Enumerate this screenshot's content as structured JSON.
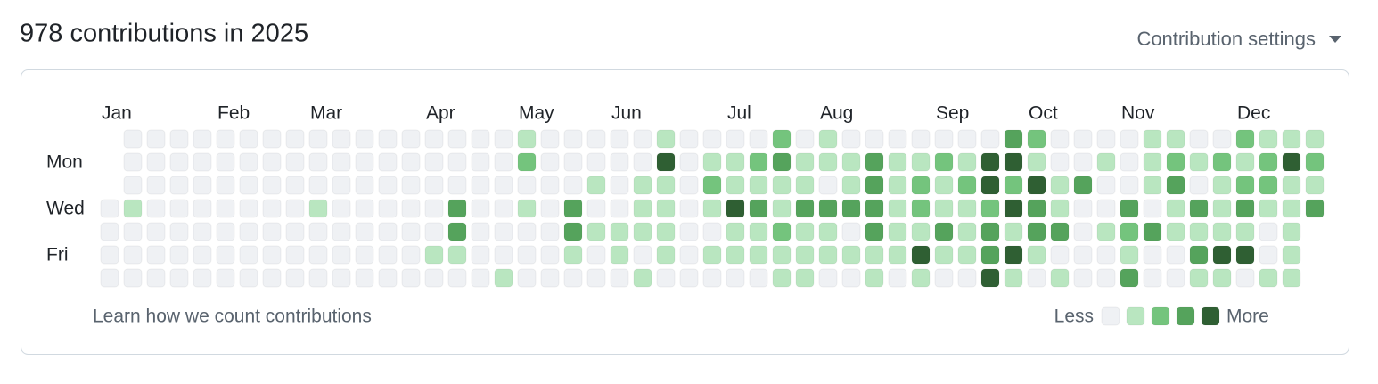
{
  "header": {
    "title": "978 contributions in 2025",
    "settings": "Contribution settings"
  },
  "calendar": {
    "months": [
      "Jan",
      "Feb",
      "Mar",
      "Apr",
      "May",
      "Jun",
      "Jul",
      "Aug",
      "Sep",
      "Oct",
      "Nov",
      "Dec"
    ],
    "day_labels": [
      "Mon",
      "Wed",
      "Fri"
    ],
    "colors": [
      "#eff1f4",
      "#b9e6c0",
      "#74c47d",
      "#55a35c",
      "#2f5f33"
    ],
    "levels": [
      [
        null,
        0,
        0,
        0,
        0,
        0,
        0,
        0,
        0,
        0,
        0,
        0,
        0,
        0,
        0,
        0,
        0,
        0,
        1,
        0,
        0,
        0,
        0,
        0,
        1,
        0,
        0,
        0,
        0,
        2,
        0,
        1,
        0,
        0,
        0,
        0,
        0,
        0,
        0,
        3,
        2,
        0,
        0,
        0,
        0,
        1,
        1,
        0,
        0,
        2,
        1,
        1,
        1
      ],
      [
        null,
        0,
        0,
        0,
        0,
        0,
        0,
        0,
        0,
        0,
        0,
        0,
        0,
        0,
        0,
        0,
        0,
        0,
        2,
        0,
        0,
        0,
        0,
        0,
        4,
        0,
        1,
        1,
        2,
        3,
        1,
        1,
        1,
        3,
        1,
        1,
        2,
        1,
        4,
        4,
        1,
        0,
        0,
        1,
        0,
        1,
        2,
        1,
        2,
        1,
        2,
        4,
        2
      ],
      [
        null,
        0,
        0,
        0,
        0,
        0,
        0,
        0,
        0,
        0,
        0,
        0,
        0,
        0,
        0,
        0,
        0,
        0,
        0,
        0,
        0,
        1,
        0,
        1,
        1,
        0,
        2,
        1,
        1,
        1,
        1,
        0,
        1,
        3,
        1,
        2,
        1,
        2,
        4,
        2,
        4,
        1,
        3,
        0,
        0,
        1,
        3,
        0,
        1,
        2,
        2,
        1,
        1
      ],
      [
        0,
        1,
        0,
        0,
        0,
        0,
        0,
        0,
        0,
        1,
        0,
        0,
        0,
        0,
        0,
        3,
        0,
        0,
        1,
        0,
        3,
        0,
        0,
        1,
        1,
        0,
        1,
        4,
        3,
        1,
        3,
        3,
        3,
        3,
        1,
        2,
        1,
        1,
        2,
        4,
        3,
        1,
        0,
        0,
        3,
        0,
        1,
        3,
        1,
        3,
        1,
        1,
        3
      ],
      [
        0,
        0,
        0,
        0,
        0,
        0,
        0,
        0,
        0,
        0,
        0,
        0,
        0,
        0,
        0,
        3,
        0,
        0,
        0,
        0,
        3,
        1,
        1,
        1,
        1,
        0,
        0,
        1,
        1,
        2,
        1,
        1,
        0,
        3,
        1,
        1,
        3,
        1,
        3,
        1,
        3,
        3,
        0,
        1,
        2,
        3,
        1,
        1,
        1,
        1,
        0,
        1,
        null
      ],
      [
        0,
        0,
        0,
        0,
        0,
        0,
        0,
        0,
        0,
        0,
        0,
        0,
        0,
        0,
        1,
        1,
        0,
        0,
        0,
        0,
        1,
        0,
        1,
        0,
        1,
        0,
        1,
        1,
        1,
        1,
        1,
        1,
        1,
        1,
        1,
        4,
        1,
        1,
        3,
        4,
        1,
        0,
        0,
        0,
        1,
        0,
        0,
        3,
        4,
        4,
        0,
        1,
        null
      ],
      [
        0,
        0,
        0,
        0,
        0,
        0,
        0,
        0,
        0,
        0,
        0,
        0,
        0,
        0,
        0,
        0,
        0,
        1,
        0,
        0,
        0,
        0,
        0,
        1,
        0,
        0,
        0,
        0,
        0,
        1,
        1,
        0,
        0,
        1,
        0,
        1,
        0,
        0,
        4,
        1,
        0,
        1,
        0,
        0,
        3,
        0,
        0,
        1,
        1,
        0,
        1,
        1,
        null
      ]
    ]
  },
  "footer": {
    "link": "Learn how we count contributions",
    "legend": {
      "less": "Less",
      "more": "More",
      "levels": [
        0,
        1,
        2,
        3,
        4
      ]
    }
  }
}
